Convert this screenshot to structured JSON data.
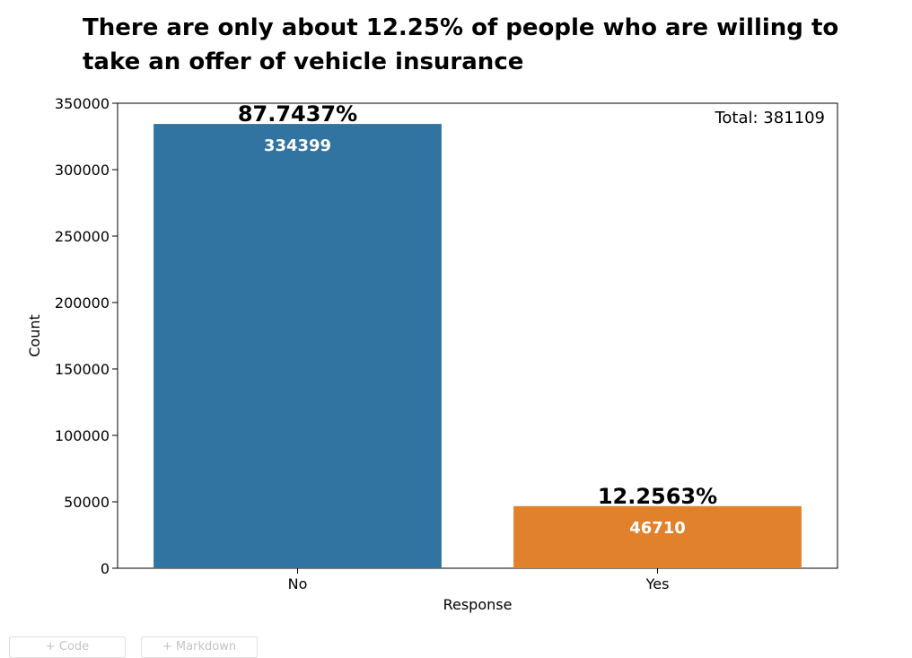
{
  "chart_data": {
    "type": "bar",
    "title": "There are only about 12.25% of people who are willing to take an offer of vehicle insurance",
    "xlabel": "Response",
    "ylabel": "Count",
    "categories": [
      "No",
      "Yes"
    ],
    "values": [
      334399,
      46710
    ],
    "value_labels": [
      "334399",
      "46710"
    ],
    "percent_labels": [
      "87.7437%",
      "12.2563%"
    ],
    "colors": [
      "#3274a1",
      "#e1812c"
    ],
    "ylim": [
      0,
      350000
    ],
    "yticks": [
      0,
      50000,
      100000,
      150000,
      200000,
      250000,
      300000,
      350000
    ],
    "ytick_labels": [
      "0",
      "50000",
      "100000",
      "150000",
      "200000",
      "250000",
      "300000",
      "350000"
    ],
    "total_label": "Total: 381109",
    "grid": false,
    "legend": "none"
  },
  "notebook": {
    "add_code_label": "+ Code",
    "add_markdown_label": "+ Markdown"
  }
}
